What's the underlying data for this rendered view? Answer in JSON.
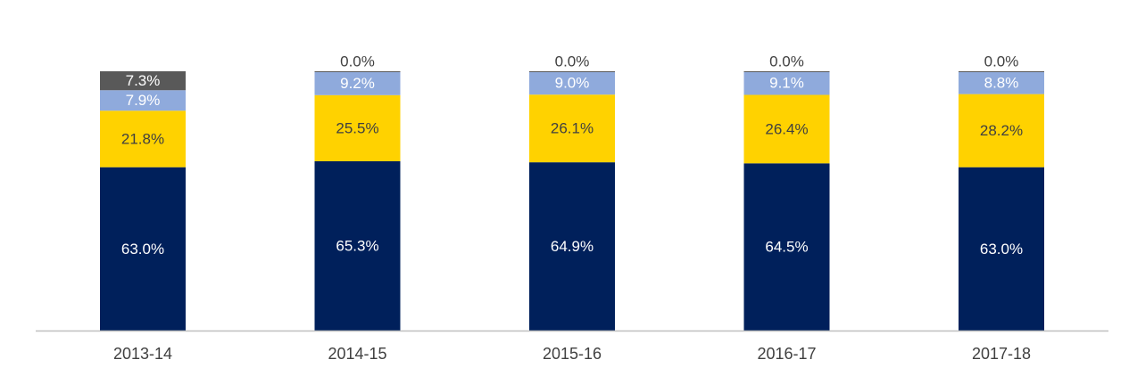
{
  "chart_data": {
    "type": "bar",
    "stacked": true,
    "normalized": true,
    "title": "",
    "xlabel": "",
    "ylabel": "",
    "legend": "none",
    "grid": false,
    "ylim": [
      0,
      1
    ],
    "categories": [
      "2013-14",
      "2014-15",
      "2015-16",
      "2016-17",
      "2017-18"
    ],
    "series": [
      {
        "values": [
          63.0,
          65.3,
          64.9,
          64.5,
          63.0
        ],
        "labels": [
          "63.0%",
          "65.3%",
          "64.9%",
          "64.5%",
          "63.0%"
        ],
        "color": "#00205B",
        "label_color": "#FFFFFF"
      },
      {
        "values": [
          21.8,
          25.5,
          26.1,
          26.4,
          28.2
        ],
        "labels": [
          "21.8%",
          "25.5%",
          "26.1%",
          "26.4%",
          "28.2%"
        ],
        "color": "#FFD200",
        "label_color": "#404040"
      },
      {
        "values": [
          7.9,
          9.2,
          9.0,
          9.1,
          8.8
        ],
        "labels": [
          "7.9%",
          "9.2%",
          "9.0%",
          "9.1%",
          "8.8%"
        ],
        "color": "#8FAADC",
        "label_color": "#FFFFFF"
      },
      {
        "values": [
          7.3,
          0.0,
          0.0,
          0.0,
          0.0
        ],
        "labels": [
          "7.3%",
          "0.0%",
          "0.0%",
          "0.0%",
          "0.0%"
        ],
        "color": "#595959",
        "label_color": "#FFFFFF",
        "zero_label_color": "#404040"
      }
    ],
    "axis_color": "#BFBFBF"
  }
}
